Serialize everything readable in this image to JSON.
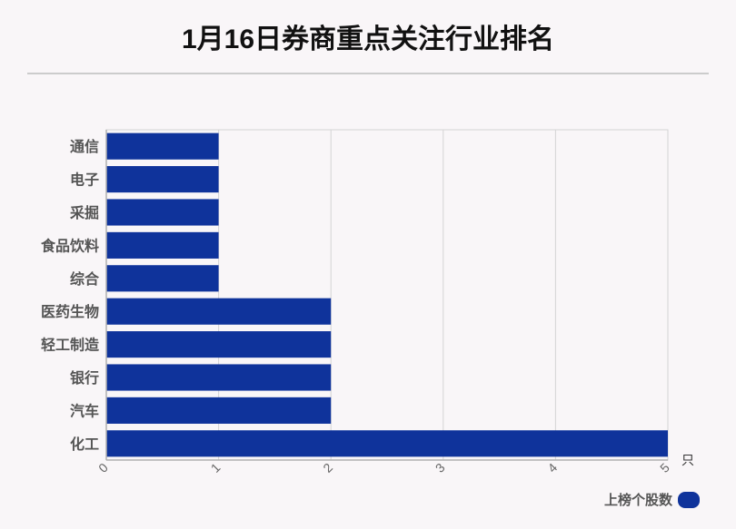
{
  "chart_data": {
    "type": "bar",
    "orientation": "horizontal",
    "title": "1月16日券商重点关注行业排名",
    "unit_label": "只",
    "categories": [
      "通信",
      "电子",
      "采掘",
      "食品饮料",
      "综合",
      "医药生物",
      "轻工制造",
      "银行",
      "汽车",
      "化工"
    ],
    "series": [
      {
        "name": "上榜个股数",
        "values": [
          1,
          1,
          1,
          1,
          1,
          2,
          2,
          2,
          2,
          5
        ]
      }
    ],
    "xlim": [
      0,
      5
    ],
    "xticks": [
      "0",
      "1",
      "2",
      "3",
      "4",
      "5"
    ],
    "grid": true,
    "legend_position": "bottom-right"
  },
  "colors": {
    "bar": "#0f339b",
    "grid": "#d4d4d4",
    "axis": "#b0b0b0",
    "category_text": "#555555",
    "tick_text": "#666666"
  }
}
